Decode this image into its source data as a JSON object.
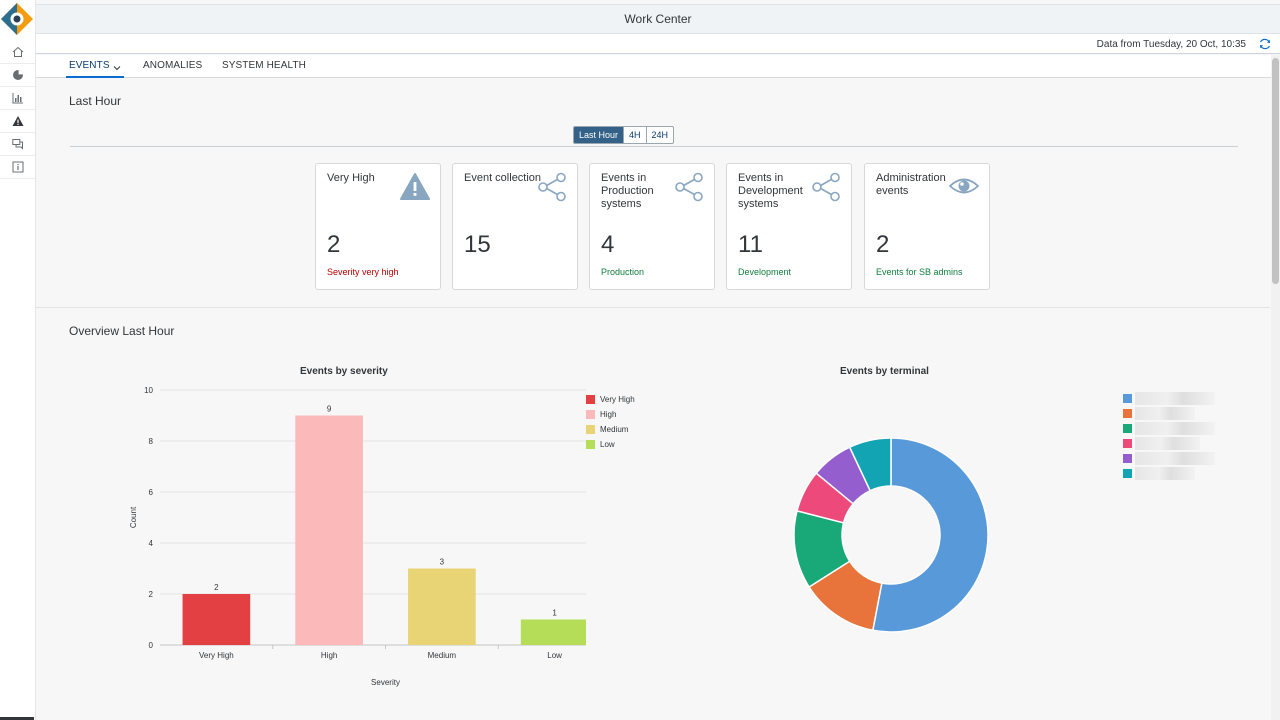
{
  "app": {
    "title": "Work Center"
  },
  "rail": {
    "items": [
      "home-icon",
      "pie-chart-icon",
      "bar-chart-icon",
      "warning-icon",
      "chat-icon",
      "info-icon"
    ]
  },
  "header": {
    "refresh_text": "Data from Tuesday, 20 Oct, 10:35"
  },
  "tabs": [
    {
      "label": "EVENTS",
      "active": true
    },
    {
      "label": "ANOMALIES",
      "active": false
    },
    {
      "label": "SYSTEM HEALTH",
      "active": false
    }
  ],
  "section1": {
    "title": "Last Hour"
  },
  "time_filter": {
    "options": [
      "Last Hour",
      "4H",
      "24H"
    ],
    "selected": "Last Hour"
  },
  "tiles": [
    {
      "title": "Very High",
      "value": "2",
      "footer": "Severity very high",
      "icon": "warning-icon",
      "footer_color": "#bb0000"
    },
    {
      "title": "Event collection",
      "value": "15",
      "footer": "",
      "icon": "share-icon"
    },
    {
      "title": "Events in Production systems",
      "value": "4",
      "footer": "Production",
      "icon": "share-icon",
      "footer_color": "#107e3e"
    },
    {
      "title": "Events in Development systems",
      "value": "11",
      "footer": "Development",
      "icon": "share-icon",
      "footer_color": "#107e3e"
    },
    {
      "title": "Administration events",
      "value": "2",
      "footer": "Events for SB admins",
      "icon": "eye-icon",
      "footer_color": "#107e3e"
    }
  ],
  "section2": {
    "title": "Overview Last Hour"
  },
  "chart_data": [
    {
      "type": "bar",
      "title": "Events by severity",
      "categories": [
        "Very High",
        "High",
        "Medium",
        "Low"
      ],
      "values": [
        2,
        9,
        3,
        1
      ],
      "colors": [
        "#e34044",
        "#fcb9b9",
        "#e8d474",
        "#b5dd58"
      ],
      "xlabel": "Severity",
      "ylabel": "Count",
      "ylim": [
        0,
        10
      ],
      "yticks": [
        "0",
        "2",
        "4",
        "6",
        "8",
        "10"
      ],
      "grid": true,
      "legend": "right",
      "legend_entries": [
        "Very High",
        "High",
        "Medium",
        "Low"
      ]
    },
    {
      "type": "pie",
      "title": "Events by terminal",
      "values": [
        53,
        13,
        13,
        7,
        7,
        7
      ],
      "colors": [
        "#5899da",
        "#e8743b",
        "#19a979",
        "#ed4a7b",
        "#945ecf",
        "#13a4b4"
      ],
      "legend": "right"
    }
  ]
}
